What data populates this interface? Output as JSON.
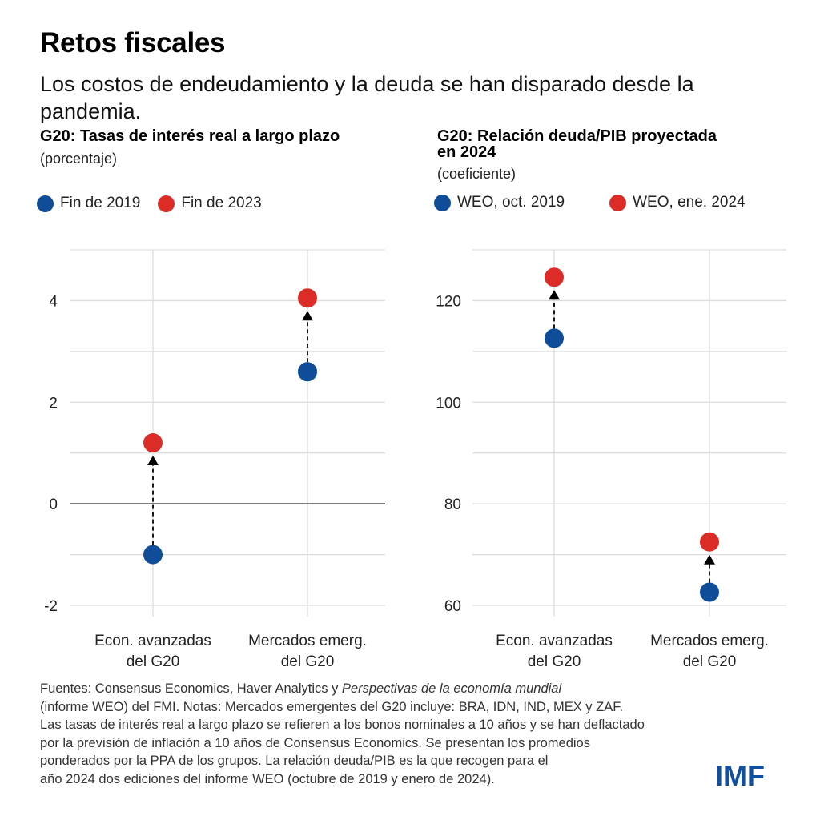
{
  "header": {
    "title": "Retos fiscales",
    "subtitle": "Los costos de endeudamiento y la deuda se han disparado desde la pandemia."
  },
  "colors": {
    "series_2019": "#0f4d98",
    "series_later": "#dc2c28",
    "grid": "#dddddd",
    "zero_line": "#000000",
    "arrow": "#000000",
    "logo": "#124f9c"
  },
  "chart_data": [
    {
      "type": "scatter",
      "title": "G20: Tasas de interés real a largo plazo",
      "unit": "(porcentaje)",
      "categories": [
        "Econ. avanzadas del G20",
        "Mercados emerg. del G20"
      ],
      "category_lines": [
        [
          "Econ. avanzadas",
          "del G20"
        ],
        [
          "Mercados emerg.",
          "del G20"
        ]
      ],
      "series": [
        {
          "name": "Fin de 2019",
          "color": "#0f4d98",
          "values": [
            -1.0,
            2.6
          ]
        },
        {
          "name": "Fin de 2023",
          "color": "#dc2c28",
          "values": [
            1.2,
            4.05
          ]
        }
      ],
      "arrows": "from first series to second series (dashed, upward)",
      "yticks": [
        -2,
        0,
        2,
        4
      ],
      "ytick_labels": [
        "-2",
        "0",
        "2",
        "4"
      ],
      "gridlines": [
        -2,
        -1,
        0,
        1,
        2,
        3,
        4,
        5
      ],
      "ylim": [
        -2,
        5
      ],
      "zero_line": true,
      "grid": true,
      "legend": "top-left"
    },
    {
      "type": "scatter",
      "title": "G20: Relación deuda/PIB proyectada en 2024",
      "title_lines": [
        "G20: Relación deuda/PIB proyectada",
        "en 2024"
      ],
      "unit": "(coeficiente)",
      "categories": [
        "Econ. avanzadas del G20",
        "Mercados emerg. del G20"
      ],
      "category_lines": [
        [
          "Econ. avanzadas",
          "del G20"
        ],
        [
          "Mercados emerg.",
          "del G20"
        ]
      ],
      "series": [
        {
          "name": "WEO, oct. 2019",
          "color": "#0f4d98",
          "values": [
            112.6,
            62.6
          ]
        },
        {
          "name": "WEO, ene. 2024",
          "color": "#dc2c28",
          "values": [
            124.6,
            72.5
          ]
        }
      ],
      "arrows": "from first series to second series (dashed, upward)",
      "yticks": [
        60,
        80,
        100,
        120
      ],
      "ytick_labels": [
        "60",
        "80",
        "100",
        "120"
      ],
      "gridlines": [
        60,
        70,
        80,
        90,
        100,
        110,
        120,
        130
      ],
      "ylim": [
        60,
        130
      ],
      "zero_line": false,
      "grid": true,
      "legend": "top-left"
    }
  ],
  "notes": {
    "lines": [
      [
        {
          "text": "Fuentes: Consensus Economics, Haver Analytics y ",
          "italic": false
        },
        {
          "text": "Perspectivas de la economía mundial",
          "italic": true
        }
      ],
      [
        {
          "text": "(informe WEO) del FMI. Notas: Mercados emergentes del G20 incluye: BRA, IDN, IND, MEX y ZAF.",
          "italic": false
        }
      ],
      [
        {
          "text": "Las tasas de interés real a largo plazo se refieren a los bonos nominales a 10 años y se han deflactado",
          "italic": false
        }
      ],
      [
        {
          "text": "por la previsión de inflación a 10 años de Consensus Economics. Se presentan los promedios",
          "italic": false
        }
      ],
      [
        {
          "text": "ponderados por la PPA de los grupos. La relación deuda/PIB es la que recogen para el",
          "italic": false
        }
      ],
      [
        {
          "text": "año 2024 dos ediciones del informe WEO (octubre de 2019 y enero de 2024).",
          "italic": false
        }
      ]
    ]
  },
  "logo": {
    "text": "IMF"
  }
}
